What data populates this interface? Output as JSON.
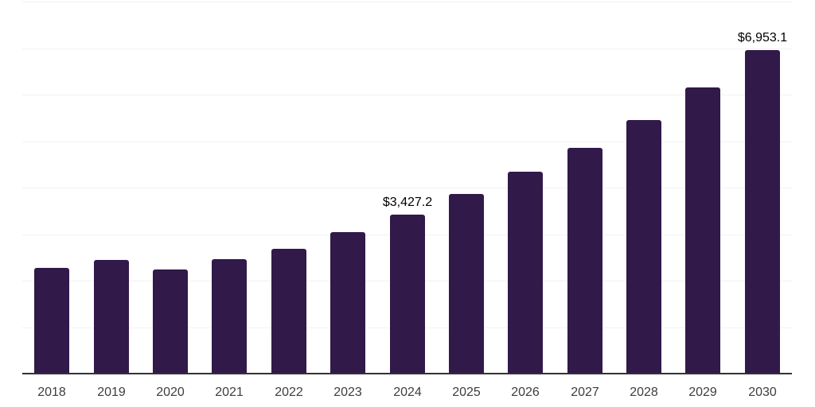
{
  "chart_data": {
    "type": "bar",
    "title": "",
    "xlabel": "",
    "ylabel": "",
    "categories": [
      "2018",
      "2019",
      "2020",
      "2021",
      "2022",
      "2023",
      "2024",
      "2025",
      "2026",
      "2027",
      "2028",
      "2029",
      "2030"
    ],
    "values": [
      2270,
      2440,
      2240,
      2470,
      2685,
      3050,
      3427.2,
      3860,
      4335,
      4855,
      5445,
      6155,
      6953.1
    ],
    "data_labels": [
      "",
      "",
      "",
      "",
      "",
      "",
      "$3,427.2",
      "",
      "",
      "",
      "",
      "",
      "$6,953.1"
    ],
    "ylim": [
      0,
      8000
    ],
    "gridline_step": 1000,
    "grid": "horizontal-only",
    "legend": "none",
    "colors": {
      "bar": "#31194a",
      "axis_line": "#333333",
      "gridline": "#f2f2f2",
      "value_label": "#000000",
      "tick_label": "#3d3d3d",
      "background": "#ffffff"
    }
  }
}
